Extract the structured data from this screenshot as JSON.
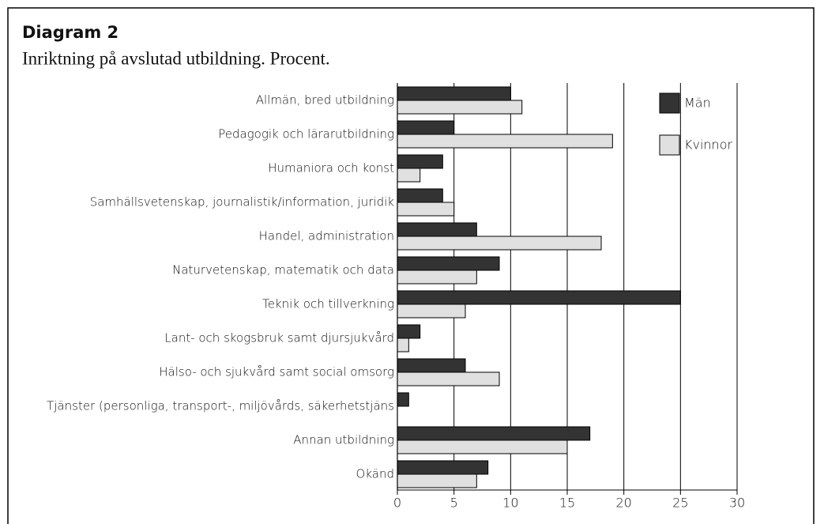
{
  "chart_data": {
    "type": "hbar",
    "title": "Diagram 2",
    "subtitle": "Inriktning på avslutad utbildning. Procent.",
    "categories": [
      "Allmän, bred utbildning",
      "Pedagogik och lärarutbildning",
      "Humaniora och konst",
      "Samhällsvetenskap, journalistik/information, juridik",
      "Handel, administration",
      "Naturvetenskap, matematik och data",
      "Teknik och tillverkning",
      "Lant- och skogsbruk samt djursjukvård",
      "Hälso- och sjukvård samt social omsorg",
      "Tjänster (personliga, transport-, miljövårds, säkerhetstjäns",
      "Annan utbildning",
      "Okänd"
    ],
    "series": [
      {
        "name": "Män",
        "color": "#333333",
        "values": [
          10,
          5,
          4,
          4,
          7,
          9,
          25,
          2,
          6,
          1,
          17,
          8
        ]
      },
      {
        "name": "Kvinnor",
        "color": "#e0e0e0",
        "values": [
          11,
          19,
          2,
          5,
          18,
          7,
          6,
          1,
          9,
          0,
          15,
          7
        ]
      }
    ],
    "xlim": [
      0,
      30
    ],
    "xticks": [
      0,
      5,
      10,
      15,
      20,
      25,
      30
    ],
    "grid": true,
    "legend": "top-right"
  }
}
